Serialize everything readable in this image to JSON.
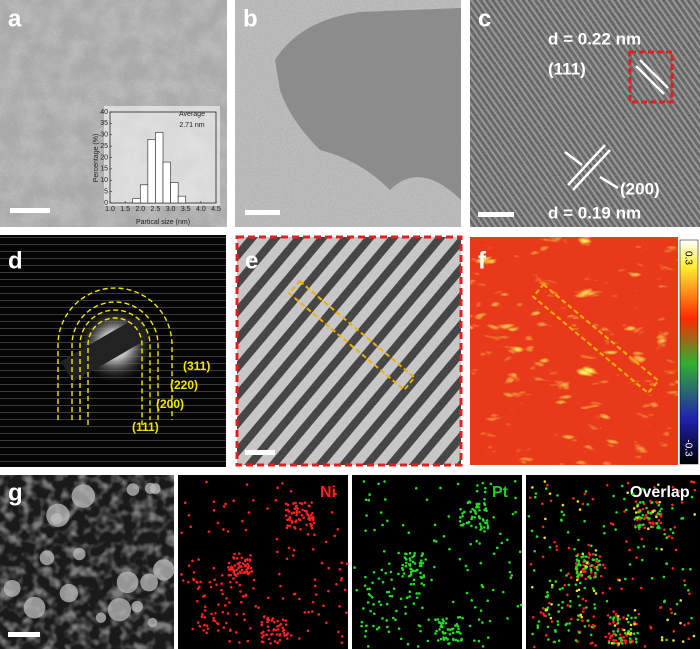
{
  "panel_labels": [
    "a",
    "b",
    "c",
    "d",
    "e",
    "f",
    "g"
  ],
  "panel_c": {
    "d_111": "d = 0.22 nm",
    "plane_111": "(111)",
    "plane_200": "(200)",
    "d_200": "d = 0.19 nm"
  },
  "panel_d": {
    "rings": [
      "(311)",
      "(220)",
      "(200)",
      "(111)"
    ]
  },
  "panel_f": {
    "colorbar_ticks": [
      0.3,
      -0.3
    ]
  },
  "panel_g": {
    "maps": [
      "Ni",
      "Pt",
      "Overlap"
    ]
  },
  "chart_data": {
    "type": "histogram",
    "annotations": [
      "Average",
      "2.71 nm"
    ],
    "x_label": "Partical size (nm)",
    "y_label": "Percentage (%)",
    "bins": [
      1.75,
      2.0,
      2.25,
      2.5,
      2.75,
      3.0,
      3.25,
      3.5
    ],
    "values": [
      2,
      8,
      28,
      31,
      18,
      9,
      3
    ],
    "color": "#ffffff",
    "xlim": [
      1.0,
      4.5
    ],
    "xticks": [
      {
        "value": 1.0,
        "label": "1.0"
      },
      1.5,
      {
        "value": 2.0,
        "label": "2.0"
      },
      2.5,
      {
        "value": 3.0,
        "label": "3.0"
      },
      3.5,
      {
        "value": 4.0,
        "label": "4.0"
      },
      4.5
    ],
    "ylim": [
      0,
      40
    ],
    "yticks": [
      0,
      5,
      10,
      15,
      20,
      25,
      30,
      35,
      40
    ]
  }
}
